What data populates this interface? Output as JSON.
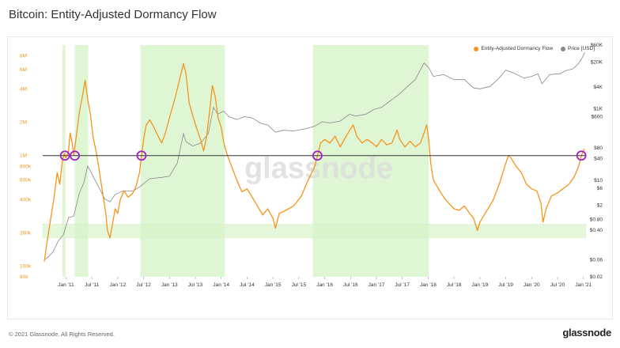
{
  "title": "Bitcoin: Entity-Adjusted Dormancy Flow",
  "footer": {
    "copyright": "© 2021 Glassnode. All Rights Reserved.",
    "brand": "glassnode"
  },
  "watermark": "glassnode",
  "colors": {
    "flow": "#f7931a",
    "price": "#888888",
    "band": "#d9f5cc",
    "threshold": "#333333",
    "marker": "#a020c0"
  },
  "chart_data": {
    "type": "line",
    "legend": [
      {
        "name": "Entity-Adjusted Dormancy Flow",
        "color": "#f7931a"
      },
      {
        "name": "Price [USD]",
        "color": "#888888"
      }
    ],
    "legend_position": "top-right",
    "left_axis": {
      "scale": "log",
      "range": [
        80000,
        10000000
      ],
      "ticks": [
        "8M",
        "6M",
        "4M",
        "2M",
        "1M",
        "800k",
        "600k",
        "400k",
        "200k",
        "100k",
        "80k"
      ]
    },
    "right_axis": {
      "scale": "log",
      "range": [
        0.02,
        60000
      ],
      "ticks": [
        "$60K",
        "$20K",
        "$4K",
        "$1K",
        "$600",
        "$80",
        "$40",
        "$10",
        "$6",
        "$2",
        "$0.80",
        "$0.40",
        "$0.06",
        "$0.02"
      ]
    },
    "x_ticks": [
      "Jan '11",
      "Jul '11",
      "Jan '12",
      "Jul '12",
      "Jan '13",
      "Jul '13",
      "Jan '14",
      "Jul '14",
      "Jan '15",
      "Jul '15",
      "Jan '16",
      "Jul '16",
      "Jan '17",
      "Jul '17",
      "Jan '18",
      "Jul '18",
      "Jan '19",
      "Jul '19",
      "Jan '20",
      "Jul '20",
      "Jan '21"
    ],
    "x_range": [
      2010.55,
      2021.05
    ],
    "threshold_line": 1000000,
    "low_band": [
      180000,
      240000
    ],
    "green_bands": [
      [
        2010.93,
        2010.99
      ],
      [
        2011.17,
        2011.43
      ],
      [
        2012.44,
        2014.07
      ],
      [
        2015.77,
        2018.01
      ]
    ],
    "signal_markers": [
      2010.98,
      2011.17,
      2012.46,
      2015.86,
      2020.96
    ],
    "flow_series": [
      [
        2010.58,
        110000
      ],
      [
        2010.63,
        160000
      ],
      [
        2010.7,
        260000
      ],
      [
        2010.77,
        420000
      ],
      [
        2010.83,
        700000
      ],
      [
        2010.88,
        550000
      ],
      [
        2010.93,
        900000
      ],
      [
        2010.97,
        1050000
      ],
      [
        2011.0,
        950000
      ],
      [
        2011.05,
        1100000
      ],
      [
        2011.08,
        1600000
      ],
      [
        2011.12,
        1300000
      ],
      [
        2011.15,
        1000000
      ],
      [
        2011.2,
        1500000
      ],
      [
        2011.26,
        2500000
      ],
      [
        2011.32,
        3500000
      ],
      [
        2011.37,
        4800000
      ],
      [
        2011.42,
        3200000
      ],
      [
        2011.47,
        2400000
      ],
      [
        2011.52,
        1500000
      ],
      [
        2011.58,
        1100000
      ],
      [
        2011.63,
        800000
      ],
      [
        2011.67,
        600000
      ],
      [
        2011.72,
        420000
      ],
      [
        2011.77,
        300000
      ],
      [
        2011.8,
        210000
      ],
      [
        2011.85,
        180000
      ],
      [
        2011.9,
        240000
      ],
      [
        2011.95,
        330000
      ],
      [
        2012.0,
        300000
      ],
      [
        2012.05,
        400000
      ],
      [
        2012.12,
        480000
      ],
      [
        2012.2,
        420000
      ],
      [
        2012.28,
        450000
      ],
      [
        2012.35,
        520000
      ],
      [
        2012.42,
        700000
      ],
      [
        2012.46,
        1000000
      ],
      [
        2012.5,
        1400000
      ],
      [
        2012.55,
        1900000
      ],
      [
        2012.62,
        2100000
      ],
      [
        2012.7,
        1800000
      ],
      [
        2012.78,
        1500000
      ],
      [
        2012.85,
        1300000
      ],
      [
        2012.92,
        1600000
      ],
      [
        2013.0,
        2200000
      ],
      [
        2013.1,
        3200000
      ],
      [
        2013.2,
        5000000
      ],
      [
        2013.27,
        6800000
      ],
      [
        2013.32,
        5500000
      ],
      [
        2013.38,
        3000000
      ],
      [
        2013.45,
        2300000
      ],
      [
        2013.52,
        1800000
      ],
      [
        2013.6,
        1400000
      ],
      [
        2013.66,
        1100000
      ],
      [
        2013.72,
        1500000
      ],
      [
        2013.78,
        2600000
      ],
      [
        2013.83,
        4300000
      ],
      [
        2013.88,
        3500000
      ],
      [
        2013.94,
        2200000
      ],
      [
        2014.0,
        1800000
      ],
      [
        2014.05,
        1300000
      ],
      [
        2014.12,
        1000000
      ],
      [
        2014.2,
        800000
      ],
      [
        2014.3,
        600000
      ],
      [
        2014.4,
        470000
      ],
      [
        2014.5,
        500000
      ],
      [
        2014.6,
        420000
      ],
      [
        2014.7,
        350000
      ],
      [
        2014.8,
        290000
      ],
      [
        2014.9,
        330000
      ],
      [
        2015.0,
        270000
      ],
      [
        2015.05,
        220000
      ],
      [
        2015.12,
        300000
      ],
      [
        2015.25,
        320000
      ],
      [
        2015.4,
        350000
      ],
      [
        2015.55,
        430000
      ],
      [
        2015.68,
        600000
      ],
      [
        2015.8,
        780000
      ],
      [
        2015.86,
        1000000
      ],
      [
        2015.92,
        1300000
      ],
      [
        2016.0,
        1400000
      ],
      [
        2016.1,
        1300000
      ],
      [
        2016.2,
        1500000
      ],
      [
        2016.3,
        1200000
      ],
      [
        2016.45,
        1600000
      ],
      [
        2016.55,
        1900000
      ],
      [
        2016.62,
        1500000
      ],
      [
        2016.72,
        1300000
      ],
      [
        2016.82,
        1400000
      ],
      [
        2016.92,
        1300000
      ],
      [
        2017.0,
        1200000
      ],
      [
        2017.1,
        1400000
      ],
      [
        2017.2,
        1250000
      ],
      [
        2017.3,
        1300000
      ],
      [
        2017.4,
        1700000
      ],
      [
        2017.45,
        1400000
      ],
      [
        2017.55,
        1200000
      ],
      [
        2017.65,
        1350000
      ],
      [
        2017.75,
        1200000
      ],
      [
        2017.85,
        1300000
      ],
      [
        2017.92,
        1600000
      ],
      [
        2017.97,
        1900000
      ],
      [
        2018.01,
        1400000
      ],
      [
        2018.05,
        850000
      ],
      [
        2018.1,
        600000
      ],
      [
        2018.2,
        500000
      ],
      [
        2018.3,
        420000
      ],
      [
        2018.4,
        370000
      ],
      [
        2018.5,
        330000
      ],
      [
        2018.6,
        320000
      ],
      [
        2018.7,
        350000
      ],
      [
        2018.8,
        300000
      ],
      [
        2018.88,
        270000
      ],
      [
        2018.95,
        210000
      ],
      [
        2019.0,
        250000
      ],
      [
        2019.1,
        300000
      ],
      [
        2019.25,
        390000
      ],
      [
        2019.38,
        560000
      ],
      [
        2019.48,
        800000
      ],
      [
        2019.55,
        1000000
      ],
      [
        2019.6,
        950000
      ],
      [
        2019.7,
        800000
      ],
      [
        2019.8,
        700000
      ],
      [
        2019.9,
        550000
      ],
      [
        2020.0,
        500000
      ],
      [
        2020.1,
        480000
      ],
      [
        2020.18,
        370000
      ],
      [
        2020.22,
        250000
      ],
      [
        2020.28,
        330000
      ],
      [
        2020.38,
        430000
      ],
      [
        2020.5,
        460000
      ],
      [
        2020.6,
        500000
      ],
      [
        2020.72,
        550000
      ],
      [
        2020.82,
        640000
      ],
      [
        2020.9,
        780000
      ],
      [
        2020.96,
        1000000
      ],
      [
        2021.02,
        1150000
      ]
    ],
    "price_series": [
      [
        2010.58,
        0.06
      ],
      [
        2010.65,
        0.07
      ],
      [
        2010.75,
        0.1
      ],
      [
        2010.85,
        0.2
      ],
      [
        2010.95,
        0.3
      ],
      [
        2011.05,
        0.9
      ],
      [
        2011.15,
        1.0
      ],
      [
        2011.25,
        4
      ],
      [
        2011.35,
        9
      ],
      [
        2011.42,
        25
      ],
      [
        2011.5,
        15
      ],
      [
        2011.6,
        8
      ],
      [
        2011.75,
        3
      ],
      [
        2011.85,
        2.5
      ],
      [
        2011.95,
        4
      ],
      [
        2012.1,
        5
      ],
      [
        2012.3,
        5
      ],
      [
        2012.45,
        7
      ],
      [
        2012.62,
        11
      ],
      [
        2012.85,
        12
      ],
      [
        2013.0,
        13
      ],
      [
        2013.15,
        30
      ],
      [
        2013.27,
        200
      ],
      [
        2013.32,
        120
      ],
      [
        2013.45,
        90
      ],
      [
        2013.6,
        110
      ],
      [
        2013.75,
        200
      ],
      [
        2013.85,
        1100
      ],
      [
        2013.93,
        700
      ],
      [
        2014.05,
        850
      ],
      [
        2014.15,
        600
      ],
      [
        2014.3,
        500
      ],
      [
        2014.45,
        600
      ],
      [
        2014.6,
        550
      ],
      [
        2014.75,
        400
      ],
      [
        2014.9,
        350
      ],
      [
        2015.05,
        220
      ],
      [
        2015.2,
        250
      ],
      [
        2015.4,
        240
      ],
      [
        2015.6,
        270
      ],
      [
        2015.8,
        320
      ],
      [
        2015.95,
        430
      ],
      [
        2016.1,
        400
      ],
      [
        2016.3,
        450
      ],
      [
        2016.48,
        700
      ],
      [
        2016.6,
        620
      ],
      [
        2016.8,
        700
      ],
      [
        2016.95,
        950
      ],
      [
        2017.1,
        1100
      ],
      [
        2017.3,
        1800
      ],
      [
        2017.45,
        2600
      ],
      [
        2017.6,
        4200
      ],
      [
        2017.75,
        6500
      ],
      [
        2017.92,
        19000
      ],
      [
        2018.01,
        14000
      ],
      [
        2018.1,
        8000
      ],
      [
        2018.3,
        9000
      ],
      [
        2018.5,
        6500
      ],
      [
        2018.7,
        6500
      ],
      [
        2018.88,
        3800
      ],
      [
        2019.0,
        3600
      ],
      [
        2019.2,
        4200
      ],
      [
        2019.4,
        8000
      ],
      [
        2019.5,
        12000
      ],
      [
        2019.65,
        10000
      ],
      [
        2019.85,
        7200
      ],
      [
        2020.0,
        8000
      ],
      [
        2020.12,
        9500
      ],
      [
        2020.2,
        5000
      ],
      [
        2020.35,
        9000
      ],
      [
        2020.55,
        9500
      ],
      [
        2020.65,
        11500
      ],
      [
        2020.8,
        13000
      ],
      [
        2020.9,
        18000
      ],
      [
        2020.96,
        24000
      ],
      [
        2021.03,
        38000
      ]
    ]
  }
}
